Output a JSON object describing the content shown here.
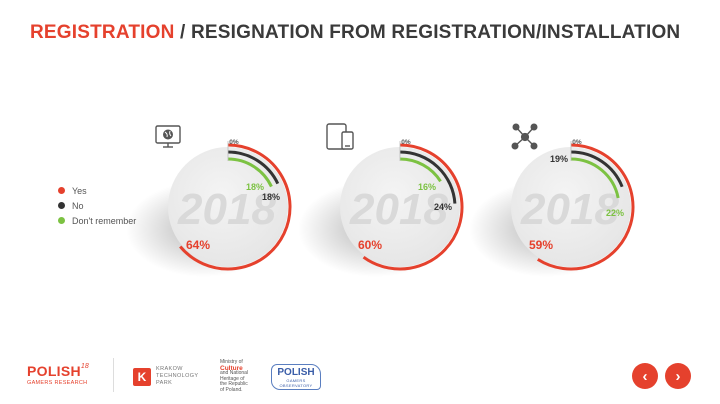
{
  "header": {
    "title_highlight": "REGISTRATION",
    "title_rest": " / RESIGNATION FROM REGISTRATION/INSTALLATION"
  },
  "legend": [
    {
      "label": "Yes",
      "color": "#e5412d"
    },
    {
      "label": "No",
      "color": "#333333"
    },
    {
      "label": "Don't remember",
      "color": "#7cc242"
    }
  ],
  "chart_data": [
    {
      "type": "donut",
      "icon": "desktop-globe-icon",
      "watermark": "2018",
      "series": [
        {
          "name": "Yes",
          "value": 64,
          "label": "64%",
          "color": "#e5412d"
        },
        {
          "name": "No",
          "value": 18,
          "label": "18%",
          "color": "#333333"
        },
        {
          "name": "Don't remember",
          "value": 18,
          "label": "18%",
          "color": "#7cc242"
        },
        {
          "name": "zero",
          "value": 0,
          "label": "0%",
          "color": "#999999"
        }
      ]
    },
    {
      "type": "donut",
      "icon": "tablet-phone-icon",
      "watermark": "2018",
      "series": [
        {
          "name": "Yes",
          "value": 60,
          "label": "60%",
          "color": "#e5412d"
        },
        {
          "name": "No",
          "value": 24,
          "label": "24%",
          "color": "#333333"
        },
        {
          "name": "Don't remember",
          "value": 16,
          "label": "16%",
          "color": "#7cc242"
        },
        {
          "name": "zero",
          "value": 0,
          "label": "0%",
          "color": "#999999"
        }
      ]
    },
    {
      "type": "donut",
      "icon": "network-nodes-icon",
      "watermark": "2018",
      "series": [
        {
          "name": "Yes",
          "value": 59,
          "label": "59%",
          "color": "#e5412d"
        },
        {
          "name": "No",
          "value": 19,
          "label": "19%",
          "color": "#333333"
        },
        {
          "name": "Don't remember",
          "value": 22,
          "label": "22%",
          "color": "#7cc242"
        },
        {
          "name": "zero",
          "value": 0,
          "label": "0%",
          "color": "#999999"
        }
      ]
    }
  ],
  "footer": {
    "pgr_name": "POLISH",
    "pgr_year": "18",
    "pgr_sub": "GAMERS RESEARCH",
    "ktp_letter": "K",
    "ktp_line1": "KRAKOW",
    "ktp_line2": "TECHNOLOGY",
    "ktp_line3": "PARK",
    "moc_line1": "Ministry of",
    "moc_culture": "Culture",
    "moc_line3": "and National",
    "moc_line4": "Heritage of",
    "moc_line5": "the Republic",
    "moc_line6": "of Poland.",
    "pgo_name": "POLISH",
    "pgo_sub": "GAMERS OBSERVATORY",
    "prev": "‹",
    "next": "›"
  }
}
